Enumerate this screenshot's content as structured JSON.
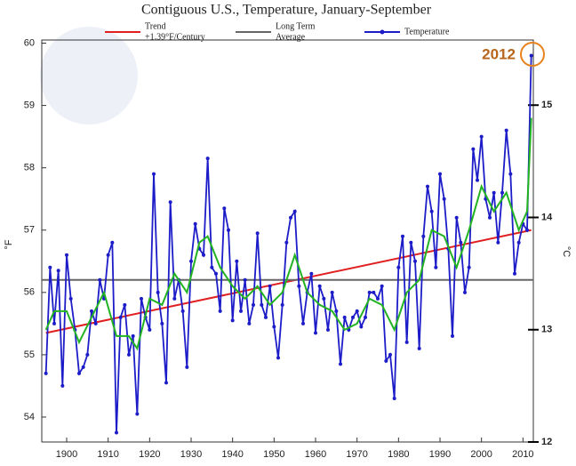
{
  "chart_data": {
    "type": "line",
    "title": "Contiguous U.S., Temperature, January-September",
    "ylabel": "°F",
    "y2label": "°C",
    "annotation": "2012",
    "xlim": [
      1894,
      2012.5
    ],
    "xticks": [
      1900,
      1910,
      1920,
      1930,
      1940,
      1950,
      1960,
      1970,
      1980,
      1990,
      2000,
      2010
    ],
    "ylim": [
      53.6,
      60.05
    ],
    "yticks": [
      54,
      55,
      56,
      57,
      58,
      59,
      60
    ],
    "y2lim": [
      12,
      15.58
    ],
    "y2ticks": [
      12,
      13,
      14,
      15
    ],
    "series": [
      {
        "name": [
          "Trend",
          "+1.39°F/Century"
        ],
        "color": "#e02020",
        "x": [
          1895,
          2012
        ],
        "values": [
          55.35,
          57.0
        ]
      },
      {
        "name": [
          "Long Term",
          "Average"
        ],
        "color": "#666666",
        "x": [
          1894,
          2012.5
        ],
        "values": [
          56.2,
          56.2
        ]
      },
      {
        "name": [
          "Temperature"
        ],
        "color": "#1c1cc8",
        "markers": true,
        "x": [
          1895,
          1896,
          1897,
          1898,
          1899,
          1900,
          1901,
          1902,
          1903,
          1904,
          1905,
          1906,
          1907,
          1908,
          1909,
          1910,
          1911,
          1912,
          1913,
          1914,
          1915,
          1916,
          1917,
          1918,
          1919,
          1920,
          1921,
          1922,
          1923,
          1924,
          1925,
          1926,
          1927,
          1928,
          1929,
          1930,
          1931,
          1932,
          1933,
          1934,
          1935,
          1936,
          1937,
          1938,
          1939,
          1940,
          1941,
          1942,
          1943,
          1944,
          1945,
          1946,
          1947,
          1948,
          1949,
          1950,
          1951,
          1952,
          1953,
          1954,
          1955,
          1956,
          1957,
          1958,
          1959,
          1960,
          1961,
          1962,
          1963,
          1964,
          1965,
          1966,
          1967,
          1968,
          1969,
          1970,
          1971,
          1972,
          1973,
          1974,
          1975,
          1976,
          1977,
          1978,
          1979,
          1980,
          1981,
          1982,
          1983,
          1984,
          1985,
          1986,
          1987,
          1988,
          1989,
          1990,
          1991,
          1992,
          1993,
          1994,
          1995,
          1996,
          1997,
          1998,
          1999,
          2000,
          2001,
          2002,
          2003,
          2004,
          2005,
          2006,
          2007,
          2008,
          2009,
          2010,
          2011,
          2012
        ],
        "values": [
          54.7,
          56.4,
          55.5,
          56.35,
          54.5,
          56.6,
          55.9,
          55.4,
          54.7,
          54.8,
          55.0,
          55.7,
          55.5,
          56.2,
          55.9,
          56.6,
          56.8,
          53.75,
          55.6,
          55.8,
          55.0,
          55.3,
          54.05,
          55.9,
          55.6,
          55.4,
          57.9,
          56.0,
          55.5,
          54.55,
          57.45,
          55.9,
          56.2,
          55.7,
          54.8,
          56.5,
          57.1,
          56.7,
          56.6,
          58.15,
          56.4,
          56.3,
          55.7,
          57.35,
          57.0,
          55.55,
          56.5,
          55.7,
          56.2,
          55.5,
          55.8,
          56.95,
          55.8,
          55.6,
          56.1,
          55.45,
          54.95,
          55.8,
          56.8,
          57.2,
          57.3,
          56.1,
          55.5,
          56.0,
          56.3,
          55.35,
          56.1,
          55.9,
          55.4,
          56.0,
          55.7,
          54.85,
          55.6,
          55.4,
          55.6,
          55.7,
          55.45,
          55.6,
          56.0,
          56.0,
          55.9,
          56.1,
          54.9,
          55.0,
          54.3,
          56.4,
          56.9,
          55.2,
          56.8,
          56.5,
          55.1,
          56.9,
          57.7,
          57.3,
          56.4,
          57.9,
          57.5,
          56.7,
          55.3,
          57.2,
          56.8,
          56.0,
          56.4,
          58.3,
          57.8,
          58.5,
          57.5,
          57.2,
          57.6,
          56.8,
          57.6,
          58.6,
          57.9,
          56.3,
          56.8,
          57.1,
          57.0,
          59.8
        ]
      },
      {
        "color": "#22b322",
        "x": [
          1895,
          1897,
          1900,
          1903,
          1906,
          1909,
          1912,
          1915,
          1917,
          1920,
          1923,
          1926,
          1929,
          1932,
          1934,
          1937,
          1940,
          1943,
          1946,
          1949,
          1952,
          1955,
          1958,
          1961,
          1964,
          1967,
          1970,
          1973,
          1976,
          1979,
          1982,
          1985,
          1988,
          1991,
          1994,
          1997,
          2000,
          2003,
          2006,
          2009,
          2011,
          2012
        ],
        "values": [
          55.4,
          55.7,
          55.7,
          55.2,
          55.6,
          56.0,
          55.3,
          55.3,
          55.1,
          55.9,
          55.8,
          56.3,
          56.0,
          56.8,
          56.9,
          56.4,
          56.1,
          55.9,
          56.1,
          55.8,
          56.0,
          56.6,
          56.0,
          55.8,
          55.7,
          55.4,
          55.5,
          55.9,
          55.8,
          55.4,
          56.0,
          56.2,
          57.0,
          56.9,
          56.4,
          57.0,
          57.7,
          57.3,
          57.6,
          57.0,
          57.3,
          58.8
        ]
      }
    ]
  }
}
